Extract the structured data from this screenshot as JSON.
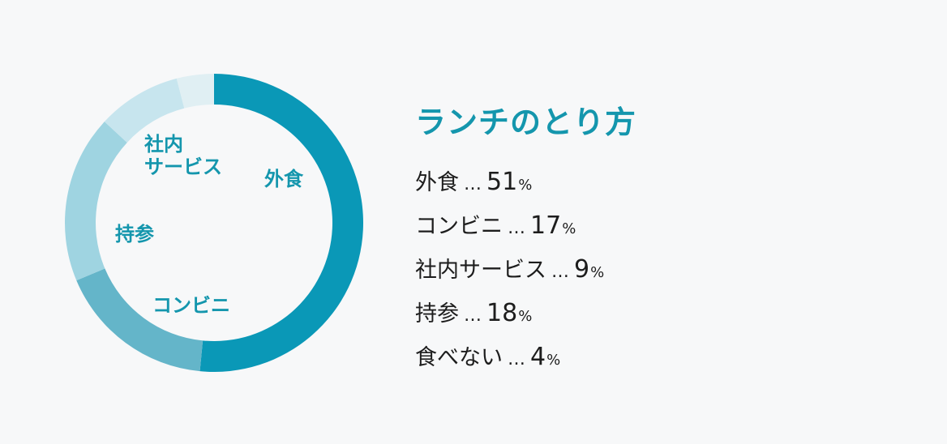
{
  "chart_data": {
    "type": "pie",
    "title": "ランチのとり方",
    "separator": "…",
    "unit": "%",
    "slices": [
      {
        "name": "外食",
        "label": "外食",
        "value": 51,
        "color": "#0a98b7"
      },
      {
        "name": "コンビニ",
        "label": "コンビニ",
        "value": 17,
        "color": "#64b5c9"
      },
      {
        "name": "持参",
        "label": "持参",
        "value": 18,
        "color": "#9fd4e1"
      },
      {
        "name": "社内サービス",
        "label": "社内\nサービス",
        "value": 9,
        "color": "#c7e5ee"
      },
      {
        "name": "食べない",
        "label": "",
        "value": 4,
        "color": "#e0eff3"
      }
    ],
    "legend_order": [
      "外食",
      "コンビニ",
      "社内サービス",
      "持参",
      "食べない"
    ]
  }
}
